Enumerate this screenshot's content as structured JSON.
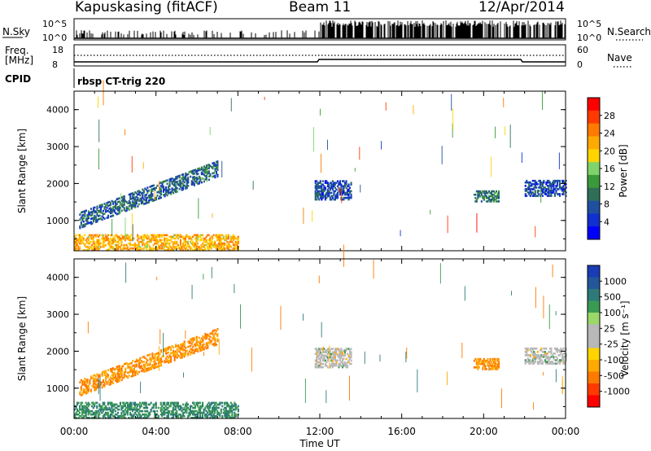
{
  "header": {
    "station": "Kapuskasing (fitACF)",
    "beam": "Beam 11",
    "date": "12/Apr/2014"
  },
  "strip_panel": {
    "left_label": "N.Sky",
    "right_label": "N.Search",
    "left_ticks": [
      "10^5",
      "10^0"
    ],
    "right_ticks": [
      "10^5",
      "10^0"
    ]
  },
  "freq_panel": {
    "left_label_line1": "Freq.",
    "left_label_line2": "[MHz]",
    "right_label": "Nave",
    "left_ticks": [
      "18",
      "8"
    ],
    "right_ticks": [
      "60",
      "0"
    ]
  },
  "cpid": {
    "label": "CPID",
    "text": "rbsp CT-trig 220"
  },
  "x_axis": {
    "title": "Time UT",
    "ticks": [
      "00:00",
      "04:00",
      "08:00",
      "12:00",
      "16:00",
      "20:00",
      "00:00"
    ]
  },
  "power_panel": {
    "ylabel": "Slant Range [km]",
    "yticks": [
      "4000",
      "3000",
      "2000",
      "1000"
    ],
    "colorbar_label": "Power [dB]",
    "colorbar_ticks": [
      "28",
      "24",
      "20",
      "16",
      "12",
      "8",
      "4"
    ],
    "colorbar_colors": [
      "#ff0000",
      "#ff3a00",
      "#ff7a00",
      "#ffaa00",
      "#ffd400",
      "#7fd36a",
      "#3a9a3a",
      "#2f6f58",
      "#1f50a0",
      "#1030d0",
      "#0000ff"
    ]
  },
  "velocity_panel": {
    "ylabel": "Slant Range [km]",
    "yticks": [
      "4000",
      "3000",
      "2000",
      "1000"
    ],
    "colorbar_label": "Velocity [m s⁻¹]",
    "colorbar_ticks": [
      "1000",
      "500",
      "100",
      "25",
      "-25",
      "-100",
      "-500",
      "-1000"
    ],
    "colorbar_colors": [
      "#1a3cb4",
      "#24569a",
      "#2e7a78",
      "#3a9a52",
      "#9ad86a",
      "#b8b8b8",
      "#b8b8b8",
      "#ffd400",
      "#ffaa00",
      "#ff7a00",
      "#ff3a00",
      "#ff0000"
    ]
  },
  "chart_data": [
    {
      "type": "heatmap",
      "title": "Power",
      "xlabel": "Time UT",
      "ylabel": "Slant Range [km]",
      "xlim": [
        "00:00",
        "24:00"
      ],
      "ylim": [
        180,
        4500
      ],
      "colorbar": {
        "label": "Power [dB]",
        "range": [
          0,
          30
        ],
        "ticks": [
          4,
          8,
          12,
          16,
          20,
          24,
          28
        ]
      },
      "features": [
        {
          "feature": "rising band",
          "time_start": "00:15",
          "time_end": "07:00",
          "range_start": 1000,
          "range_end": 2400,
          "power_db": 8
        },
        {
          "feature": "near range echoes",
          "time_start": "00:00",
          "time_end": "08:00",
          "range_min": 180,
          "range_max": 600,
          "power_db": 20
        },
        {
          "feature": "band near noon",
          "time_start": "11:45",
          "time_end": "13:30",
          "range_min": 1550,
          "range_max": 2050,
          "power_db": 6
        },
        {
          "feature": "band at 20:00",
          "time_start": "19:30",
          "time_end": "20:45",
          "range_min": 1500,
          "range_max": 1800,
          "power_db": 10
        },
        {
          "feature": "band late day",
          "time_start": "22:00",
          "time_end": "24:00",
          "range_min": 1650,
          "range_max": 2100,
          "power_db": 6
        }
      ]
    },
    {
      "type": "heatmap",
      "title": "Velocity",
      "xlabel": "Time UT",
      "ylabel": "Slant Range [km]",
      "xlim": [
        "00:00",
        "24:00"
      ],
      "ylim": [
        180,
        4500
      ],
      "colorbar": {
        "label": "Velocity [m s⁻¹]",
        "range": [
          -1000,
          1000
        ],
        "ticks": [
          1000,
          500,
          100,
          25,
          -25,
          -100,
          -500,
          -1000
        ]
      },
      "features": [
        {
          "feature": "rising band",
          "time_start": "00:15",
          "time_end": "07:00",
          "range_start": 1000,
          "range_end": 2400,
          "velocity": -100
        },
        {
          "feature": "near range echoes",
          "time_start": "00:00",
          "time_end": "08:00",
          "range_min": 180,
          "range_max": 600,
          "velocity": 100
        },
        {
          "feature": "band near noon",
          "time_start": "11:45",
          "time_end": "13:30",
          "range_min": 1550,
          "range_max": 2050,
          "velocity": 0
        },
        {
          "feature": "band at 20:00",
          "time_start": "19:30",
          "time_end": "20:45",
          "range_min": 1500,
          "range_max": 1800,
          "velocity": -100
        },
        {
          "feature": "band late day",
          "time_start": "22:00",
          "time_end": "24:00",
          "range_min": 1650,
          "range_max": 2100,
          "velocity": 0
        }
      ]
    }
  ]
}
